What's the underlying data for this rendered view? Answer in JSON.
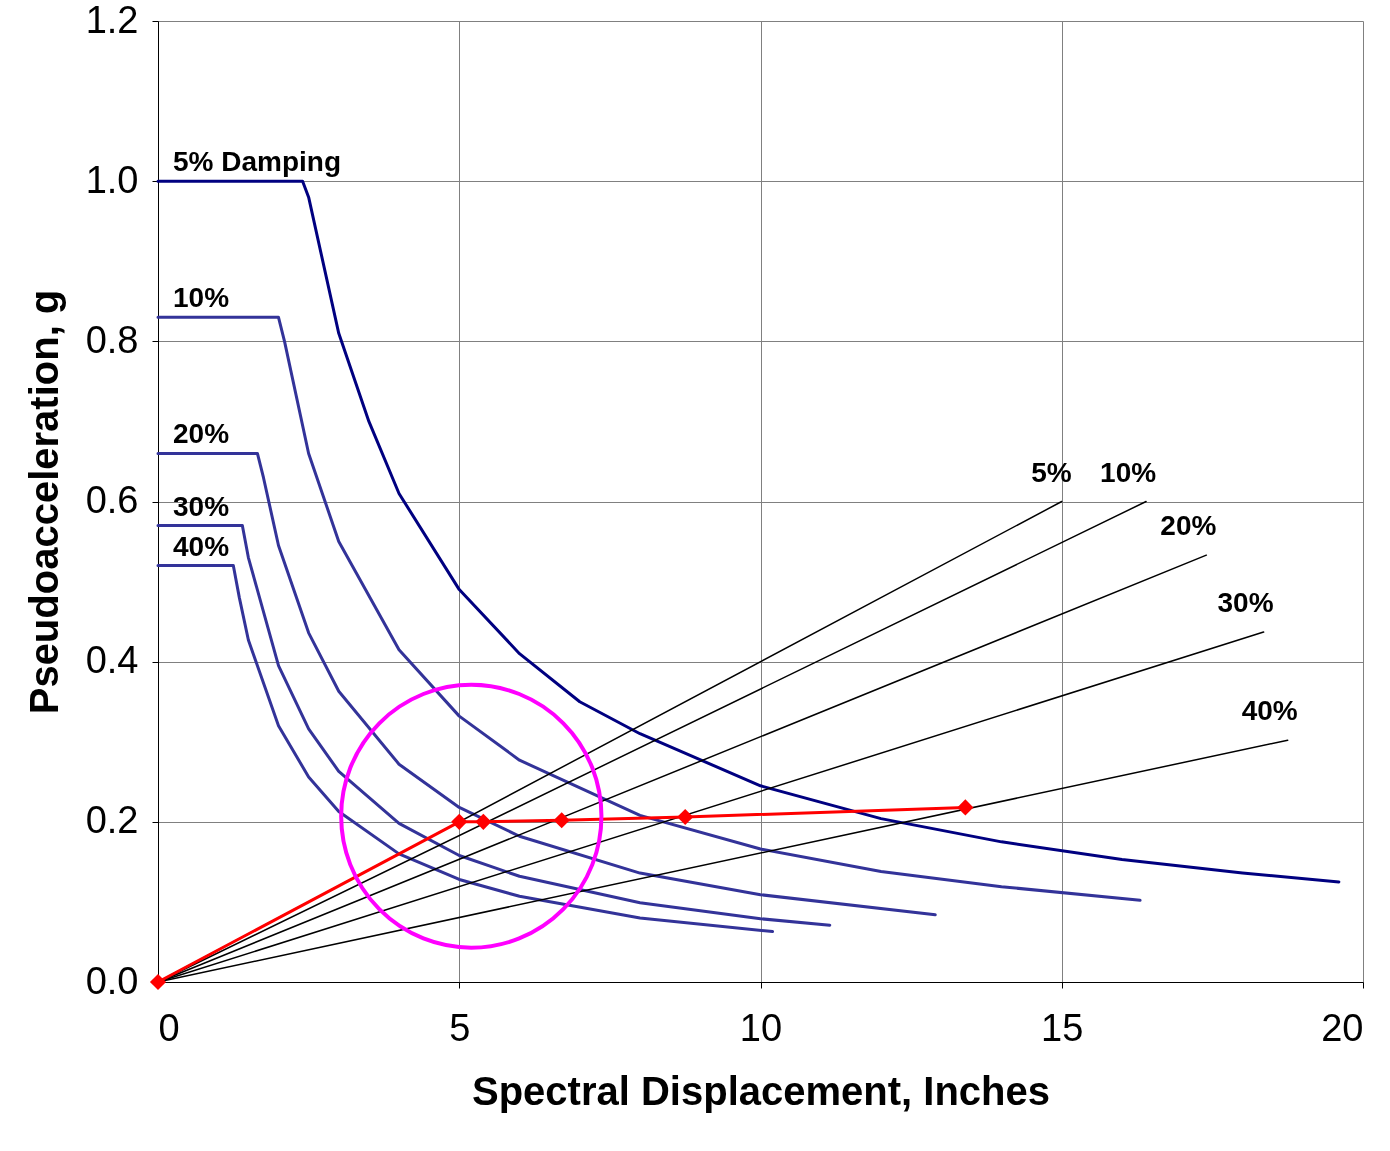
{
  "chart_data": {
    "type": "line",
    "xlabel": "Spectral Displacement, Inches",
    "ylabel": "Pseudoacceleration, g",
    "xlim": [
      0,
      20
    ],
    "xticks": [
      0,
      5,
      10,
      15,
      20
    ],
    "ylim": [
      0,
      1.2
    ],
    "yticks": [
      {
        "value": 0,
        "label": "0.0"
      },
      {
        "value": 0.2,
        "label": "0.2"
      },
      {
        "value": 0.4,
        "label": "0.4"
      },
      {
        "value": 0.6,
        "label": "0.6"
      },
      {
        "value": 0.8,
        "label": "0.8"
      },
      {
        "value": 1,
        "label": "1.0"
      },
      {
        "value": 1.2,
        "label": "1.2"
      }
    ],
    "grid": true,
    "series": [
      {
        "name": "5% Damping",
        "color": "#000080",
        "x": [
          0,
          2.4,
          2.5,
          3,
          3.5,
          4,
          5,
          6,
          7,
          8,
          10,
          12,
          14,
          16,
          18,
          19.6
        ],
        "values": [
          1.0,
          1.0,
          0.98,
          0.81,
          0.7,
          0.61,
          0.49,
          0.41,
          0.35,
          0.31,
          0.245,
          0.204,
          0.175,
          0.153,
          0.136,
          0.125
        ]
      },
      {
        "name": "10%",
        "color": "#333399",
        "x": [
          0,
          2.0,
          2.1,
          2.5,
          3,
          4,
          5,
          6,
          8,
          10,
          12,
          14,
          16.3
        ],
        "values": [
          0.83,
          0.83,
          0.8,
          0.66,
          0.55,
          0.415,
          0.332,
          0.277,
          0.208,
          0.166,
          0.138,
          0.119,
          0.102
        ]
      },
      {
        "name": "20%",
        "color": "#333399",
        "x": [
          0,
          1.65,
          1.75,
          2,
          2.5,
          3,
          4,
          5,
          6,
          8,
          10,
          12.9
        ],
        "values": [
          0.66,
          0.66,
          0.63,
          0.545,
          0.436,
          0.363,
          0.272,
          0.218,
          0.182,
          0.136,
          0.109,
          0.084
        ]
      },
      {
        "name": "30%",
        "color": "#333399",
        "x": [
          0,
          1.4,
          1.5,
          2,
          2.5,
          3,
          4,
          5,
          6,
          8,
          10,
          11.15
        ],
        "values": [
          0.57,
          0.57,
          0.53,
          0.395,
          0.316,
          0.263,
          0.198,
          0.158,
          0.132,
          0.099,
          0.079,
          0.071
        ]
      },
      {
        "name": "40%",
        "color": "#333399",
        "x": [
          0,
          1.25,
          1.35,
          1.5,
          2,
          2.5,
          3,
          4,
          5,
          6,
          8,
          10.2
        ],
        "values": [
          0.52,
          0.52,
          0.48,
          0.427,
          0.32,
          0.256,
          0.213,
          0.16,
          0.128,
          0.107,
          0.08,
          0.063
        ]
      },
      {
        "name": "5%",
        "color": "#000000",
        "x": [
          0,
          15
        ],
        "values": [
          0,
          0.6
        ]
      },
      {
        "name": "10%",
        "color": "#000000",
        "x": [
          0,
          16.4
        ],
        "values": [
          0,
          0.6
        ]
      },
      {
        "name": "20%",
        "color": "#000000",
        "x": [
          0,
          17.4
        ],
        "values": [
          0,
          0.533
        ]
      },
      {
        "name": "30%",
        "color": "#000000",
        "x": [
          0,
          18.35
        ],
        "values": [
          0,
          0.437
        ]
      },
      {
        "name": "40%",
        "color": "#000000",
        "x": [
          0,
          18.75
        ],
        "values": [
          0,
          0.302
        ]
      },
      {
        "color": "#ff0000",
        "marker": "diamond",
        "x": [
          0,
          5,
          5.4,
          6.7,
          8.75,
          13.4
        ],
        "values": [
          0,
          0.2,
          0.2,
          0.202,
          0.206,
          0.218
        ]
      }
    ]
  }
}
